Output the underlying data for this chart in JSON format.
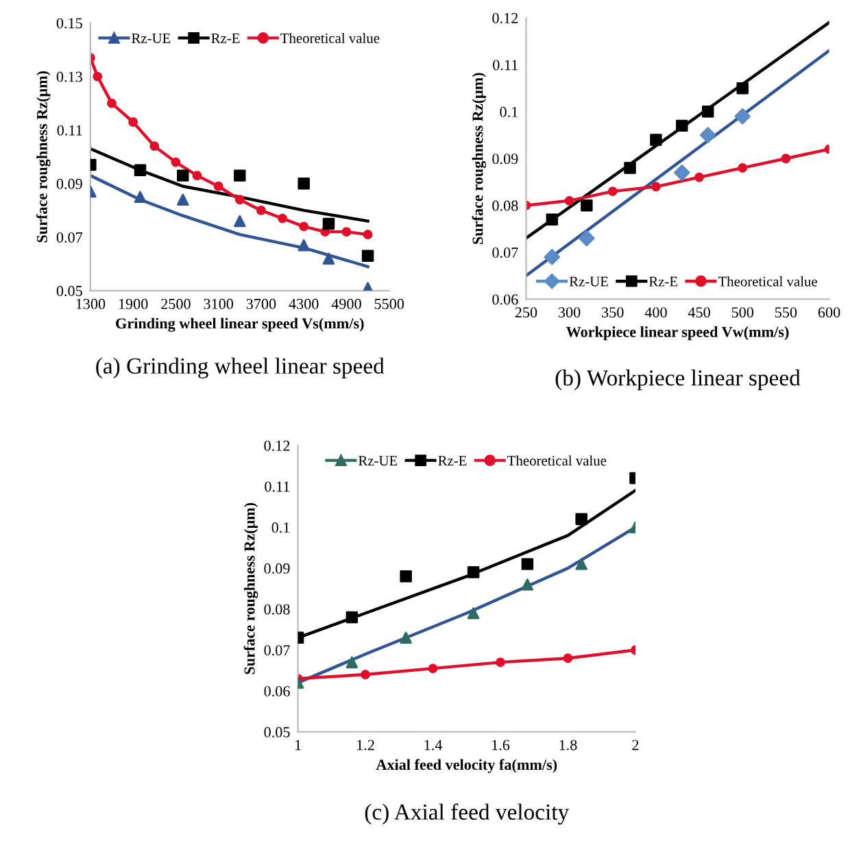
{
  "chart_data": [
    {
      "type": "scatter",
      "xlabel": "Grinding wheel linear speed Vs(mm/s)",
      "ylabel": "Surface roughness Rz(μm)",
      "annotations": [
        "(a) Grinding wheel linear speed"
      ],
      "xlim": [
        1300,
        5500
      ],
      "xticks": [
        1300,
        1900,
        2500,
        3100,
        3700,
        4300,
        4900,
        5500
      ],
      "ylim": [
        0.05,
        0.15
      ],
      "yticks": [
        0.05,
        0.07,
        0.09,
        0.11,
        0.13,
        0.15
      ],
      "grid": false,
      "legend": "top",
      "series": [
        {
          "name": "Rz-UE",
          "marker": "triangle",
          "color": "#2f5597",
          "x": [
            1300,
            2000,
            2600,
            3400,
            4300,
            4650,
            5200
          ],
          "values": [
            0.087,
            0.085,
            0.084,
            0.076,
            0.067,
            0.062,
            0.051
          ]
        },
        {
          "type": "line",
          "marker": "none",
          "color": "#2f5597",
          "x": [
            1300,
            2000,
            2600,
            3400,
            4300,
            5200
          ],
          "values": [
            0.093,
            0.084,
            0.078,
            0.071,
            0.066,
            0.059
          ]
        },
        {
          "name": "Rz-E",
          "marker": "square",
          "color": "#000000",
          "x": [
            1300,
            2000,
            2600,
            3400,
            4300,
            4650,
            5200
          ],
          "values": [
            0.097,
            0.095,
            0.093,
            0.093,
            0.09,
            0.075,
            0.063
          ]
        },
        {
          "type": "line",
          "marker": "none",
          "color": "#000000",
          "x": [
            1300,
            2000,
            2600,
            3400,
            4300,
            5200
          ],
          "values": [
            0.103,
            0.095,
            0.089,
            0.085,
            0.08,
            0.076
          ]
        },
        {
          "name": "Theoretical value",
          "type": "line",
          "marker": "circle",
          "color": "#e0102a",
          "x": [
            1300,
            1400,
            1600,
            1900,
            2200,
            2500,
            2800,
            3100,
            3400,
            3700,
            4000,
            4300,
            4600,
            4900,
            5200
          ],
          "values": [
            0.137,
            0.13,
            0.12,
            0.113,
            0.104,
            0.098,
            0.093,
            0.089,
            0.084,
            0.08,
            0.077,
            0.074,
            0.072,
            0.072,
            0.071
          ]
        }
      ]
    },
    {
      "type": "scatter",
      "xlabel": "Workpiece linear speed Vw(mm/s)",
      "ylabel": "Surface roughness Rz(μm)",
      "annotations": [
        "(b) Workpiece linear speed"
      ],
      "xlim": [
        250,
        600
      ],
      "xticks": [
        250,
        300,
        350,
        400,
        450,
        500,
        550,
        600
      ],
      "ylim": [
        0.06,
        0.12
      ],
      "yticks": [
        0.06,
        0.07,
        0.08,
        0.09,
        0.1,
        0.11,
        0.12
      ],
      "grid": false,
      "legend": "bottom",
      "series": [
        {
          "name": "Rz-UE",
          "marker": "diamond",
          "color": "#5b8bc6",
          "x": [
            280,
            320,
            430,
            460,
            500
          ],
          "values": [
            0.069,
            0.073,
            0.087,
            0.095,
            0.099
          ]
        },
        {
          "type": "line",
          "marker": "none",
          "color": "#2f5597",
          "x": [
            250,
            600
          ],
          "values": [
            0.065,
            0.113
          ]
        },
        {
          "name": "Rz-E",
          "marker": "square",
          "color": "#000000",
          "x": [
            280,
            320,
            370,
            400,
            430,
            460,
            500
          ],
          "values": [
            0.077,
            0.08,
            0.088,
            0.094,
            0.097,
            0.1,
            0.105
          ]
        },
        {
          "type": "line",
          "marker": "none",
          "color": "#000000",
          "x": [
            250,
            600
          ],
          "values": [
            0.073,
            0.119
          ]
        },
        {
          "name": "Theoretical value",
          "type": "line",
          "marker": "circle",
          "color": "#e0102a",
          "x": [
            250,
            300,
            350,
            400,
            450,
            500,
            550,
            600
          ],
          "values": [
            0.08,
            0.081,
            0.083,
            0.084,
            0.086,
            0.088,
            0.09,
            0.092
          ]
        }
      ]
    },
    {
      "type": "scatter",
      "xlabel": "Axial feed velocity fa(mm/s)",
      "ylabel": "Surface roughness Rz(μm)",
      "annotations": [
        "(c) Axial feed velocity"
      ],
      "xlim": [
        1,
        2
      ],
      "xticks": [
        1,
        1.2,
        1.4,
        1.6,
        1.8,
        2
      ],
      "ylim": [
        0.05,
        0.12
      ],
      "yticks": [
        0.05,
        0.06,
        0.07,
        0.08,
        0.09,
        0.1,
        0.11,
        0.12
      ],
      "grid": false,
      "legend": "top",
      "series": [
        {
          "name": "Rz-UE",
          "marker": "triangle",
          "color": "#2e6b63",
          "x": [
            1,
            1.16,
            1.32,
            1.52,
            1.68,
            1.84,
            2
          ],
          "values": [
            0.062,
            0.067,
            0.073,
            0.079,
            0.086,
            0.091,
            0.1
          ]
        },
        {
          "type": "line",
          "marker": "none",
          "color": "#2f5597",
          "x": [
            1,
            1.2,
            1.5,
            1.8,
            2
          ],
          "values": [
            0.062,
            0.069,
            0.079,
            0.09,
            0.1
          ]
        },
        {
          "name": "Rz-E",
          "marker": "square",
          "color": "#000000",
          "x": [
            1,
            1.16,
            1.32,
            1.52,
            1.68,
            1.84,
            2
          ],
          "values": [
            0.073,
            0.078,
            0.088,
            0.089,
            0.091,
            0.102,
            0.112
          ]
        },
        {
          "type": "line",
          "marker": "none",
          "color": "#000000",
          "x": [
            1,
            1.2,
            1.5,
            1.8,
            2
          ],
          "values": [
            0.073,
            0.079,
            0.088,
            0.098,
            0.109
          ]
        },
        {
          "name": "Theoretical value",
          "type": "line",
          "marker": "circle",
          "color": "#e0102a",
          "x": [
            1,
            1.2,
            1.4,
            1.6,
            1.8,
            2
          ],
          "values": [
            0.063,
            0.064,
            0.0655,
            0.067,
            0.068,
            0.07
          ]
        }
      ]
    }
  ]
}
